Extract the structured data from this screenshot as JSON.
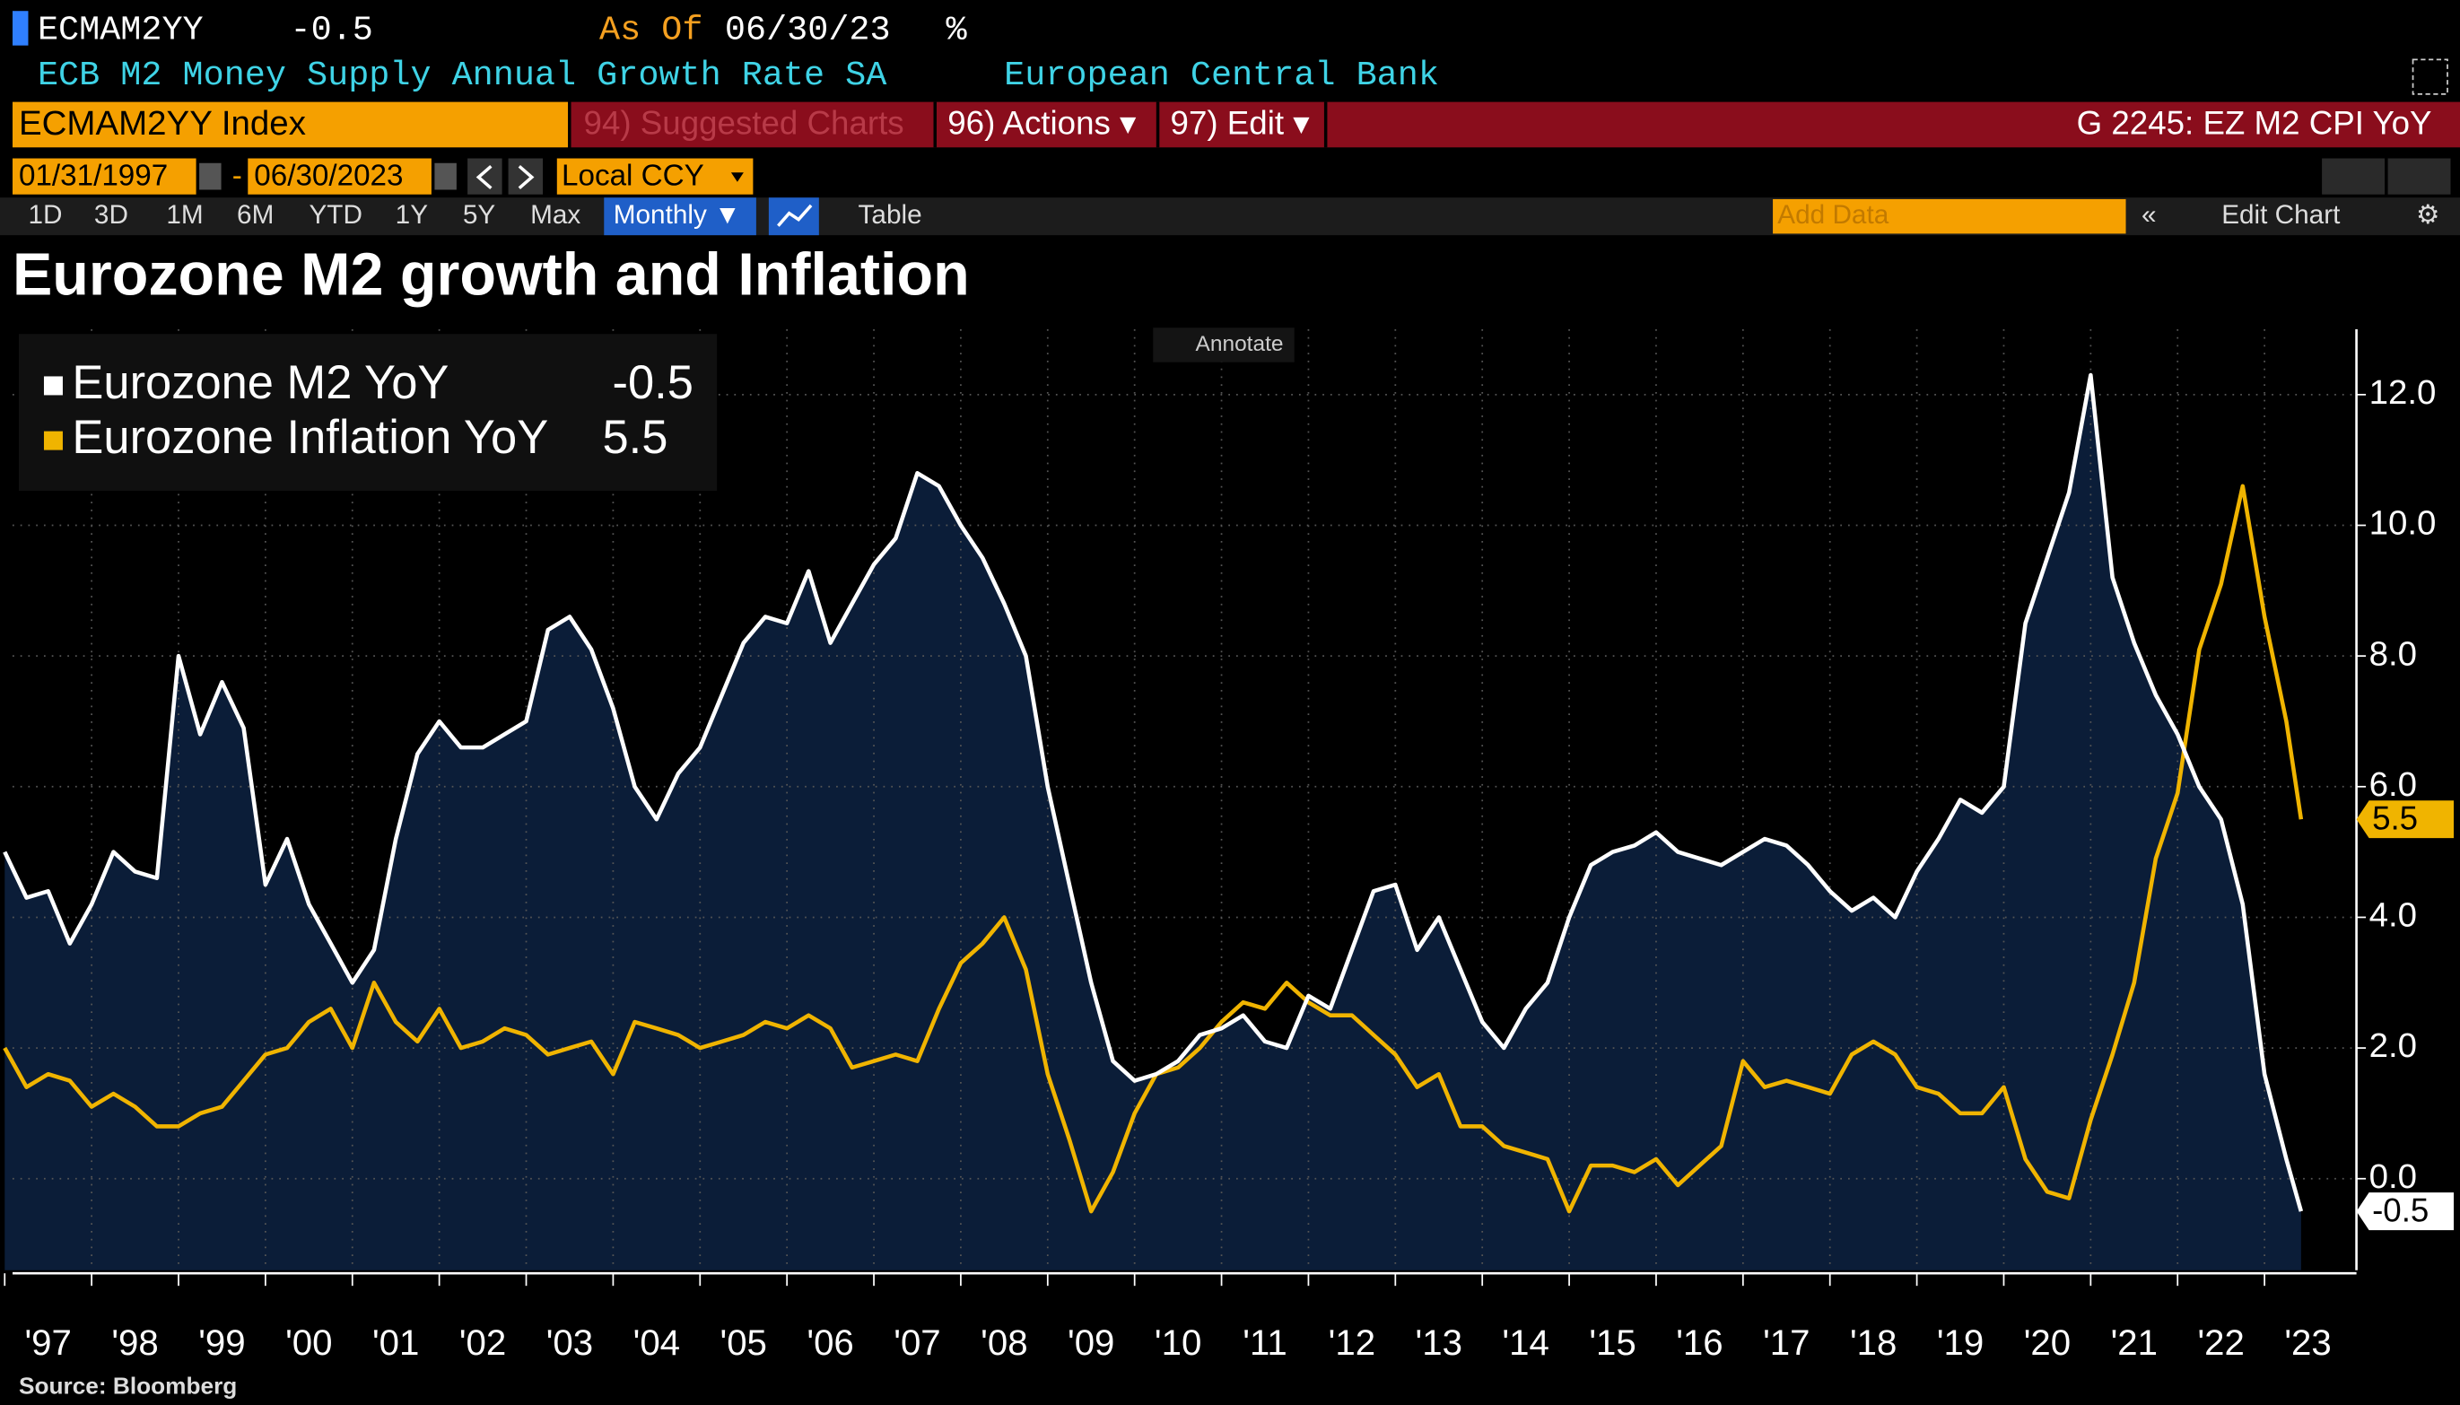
{
  "header": {
    "ticker": "ECMAM2YY",
    "as_of_label": "As Of",
    "as_of": "06/30/23",
    "unit": "%",
    "description": "ECB M2 Money Supply Annual Growth Rate SA",
    "source_name": "European Central Bank"
  },
  "toolbar": {
    "security": "ECMAM2YY Index",
    "suggested": "94) Suggested Charts",
    "actions": "96) Actions ▾",
    "edit": "97) Edit ▾",
    "chart_id": "G 2245: EZ M2 CPI YoY",
    "start_date": "01/31/1997",
    "end_date": "06/30/2023",
    "date_sep": "-",
    "currency": "Local CCY",
    "periods": [
      "1D",
      "3D",
      "1M",
      "6M",
      "YTD",
      "1Y",
      "5Y",
      "Max"
    ],
    "frequency": "Monthly ▼",
    "table": "Table",
    "add_data": "Add Data",
    "edit_chart": "Edit Chart",
    "annotate": "Annotate"
  },
  "chart_data": {
    "type": "line",
    "title": "Eurozone M2 growth and Inflation",
    "source": "Source: Bloomberg",
    "x": [
      1997.0,
      1997.25,
      1997.5,
      1997.75,
      1998.0,
      1998.25,
      1998.5,
      1998.75,
      1999.0,
      1999.25,
      1999.5,
      1999.75,
      2000.0,
      2000.25,
      2000.5,
      2000.75,
      2001.0,
      2001.25,
      2001.5,
      2001.75,
      2002.0,
      2002.25,
      2002.5,
      2002.75,
      2003.0,
      2003.25,
      2003.5,
      2003.75,
      2004.0,
      2004.25,
      2004.5,
      2004.75,
      2005.0,
      2005.25,
      2005.5,
      2005.75,
      2006.0,
      2006.25,
      2006.5,
      2006.75,
      2007.0,
      2007.25,
      2007.5,
      2007.75,
      2008.0,
      2008.25,
      2008.5,
      2008.75,
      2009.0,
      2009.25,
      2009.5,
      2009.75,
      2010.0,
      2010.25,
      2010.5,
      2010.75,
      2011.0,
      2011.25,
      2011.5,
      2011.75,
      2012.0,
      2012.25,
      2012.5,
      2012.75,
      2013.0,
      2013.25,
      2013.5,
      2013.75,
      2014.0,
      2014.25,
      2014.5,
      2014.75,
      2015.0,
      2015.25,
      2015.5,
      2015.75,
      2016.0,
      2016.25,
      2016.5,
      2016.75,
      2017.0,
      2017.25,
      2017.5,
      2017.75,
      2018.0,
      2018.25,
      2018.5,
      2018.75,
      2019.0,
      2019.25,
      2019.5,
      2019.75,
      2020.0,
      2020.25,
      2020.5,
      2020.75,
      2021.0,
      2021.25,
      2021.5,
      2021.75,
      2022.0,
      2022.25,
      2022.5,
      2022.75,
      2023.0,
      2023.25,
      2023.42
    ],
    "series": [
      {
        "name": "Eurozone M2 YoY",
        "color": "#ffffff",
        "fill": "#0b1d38",
        "values": [
          5.0,
          4.3,
          4.4,
          3.6,
          4.2,
          5.0,
          4.7,
          4.6,
          8.0,
          6.8,
          7.6,
          6.9,
          4.5,
          5.2,
          4.2,
          3.6,
          3.0,
          3.5,
          5.2,
          6.5,
          7.0,
          6.6,
          6.6,
          6.8,
          7.0,
          8.4,
          8.6,
          8.1,
          7.2,
          6.0,
          5.5,
          6.2,
          6.6,
          7.4,
          8.2,
          8.6,
          8.5,
          9.3,
          8.2,
          8.8,
          9.4,
          9.8,
          10.8,
          10.6,
          10.0,
          9.5,
          8.8,
          8.0,
          6.0,
          4.5,
          3.0,
          1.8,
          1.5,
          1.6,
          1.8,
          2.2,
          2.3,
          2.5,
          2.1,
          2.0,
          2.8,
          2.6,
          3.5,
          4.4,
          4.5,
          3.5,
          4.0,
          3.2,
          2.4,
          2.0,
          2.6,
          3.0,
          4.0,
          4.8,
          5.0,
          5.1,
          5.3,
          5.0,
          4.9,
          4.8,
          5.0,
          5.2,
          5.1,
          4.8,
          4.4,
          4.1,
          4.3,
          4.0,
          4.7,
          5.2,
          5.8,
          5.6,
          6.0,
          8.5,
          9.5,
          10.5,
          12.3,
          9.2,
          8.2,
          7.4,
          6.8,
          6.0,
          5.5,
          4.2,
          1.6,
          0.3,
          -0.5
        ]
      },
      {
        "name": "Eurozone Inflation YoY",
        "color": "#f0b400",
        "values": [
          2.0,
          1.4,
          1.6,
          1.5,
          1.1,
          1.3,
          1.1,
          0.8,
          0.8,
          1.0,
          1.1,
          1.5,
          1.9,
          2.0,
          2.4,
          2.6,
          2.0,
          3.0,
          2.4,
          2.1,
          2.6,
          2.0,
          2.1,
          2.3,
          2.2,
          1.9,
          2.0,
          2.1,
          1.6,
          2.4,
          2.3,
          2.2,
          2.0,
          2.1,
          2.2,
          2.4,
          2.3,
          2.5,
          2.3,
          1.7,
          1.8,
          1.9,
          1.8,
          2.6,
          3.3,
          3.6,
          4.0,
          3.2,
          1.6,
          0.6,
          -0.5,
          0.1,
          1.0,
          1.6,
          1.7,
          2.0,
          2.4,
          2.7,
          2.6,
          3.0,
          2.7,
          2.5,
          2.5,
          2.2,
          1.9,
          1.4,
          1.6,
          0.8,
          0.8,
          0.5,
          0.4,
          0.3,
          -0.5,
          0.2,
          0.2,
          0.1,
          0.3,
          -0.1,
          0.2,
          0.5,
          1.8,
          1.4,
          1.5,
          1.4,
          1.3,
          1.9,
          2.1,
          1.9,
          1.4,
          1.3,
          1.0,
          1.0,
          1.4,
          0.3,
          -0.2,
          -0.3,
          0.9,
          1.9,
          3.0,
          4.9,
          5.9,
          8.1,
          9.1,
          10.6,
          8.6,
          7.0,
          5.5
        ]
      }
    ],
    "xlim": [
      1996.9,
      2024.0
    ],
    "xticks": [
      {
        "value": 1997,
        "label": "'97"
      },
      {
        "value": 1998,
        "label": "'98"
      },
      {
        "value": 1999,
        "label": "'99"
      },
      {
        "value": 2000,
        "label": "'00"
      },
      {
        "value": 2001,
        "label": "'01"
      },
      {
        "value": 2002,
        "label": "'02"
      },
      {
        "value": 2003,
        "label": "'03"
      },
      {
        "value": 2004,
        "label": "'04"
      },
      {
        "value": 2005,
        "label": "'05"
      },
      {
        "value": 2006,
        "label": "'06"
      },
      {
        "value": 2007,
        "label": "'07"
      },
      {
        "value": 2008,
        "label": "'08"
      },
      {
        "value": 2009,
        "label": "'09"
      },
      {
        "value": 2010,
        "label": "'10"
      },
      {
        "value": 2011,
        "label": "'11"
      },
      {
        "value": 2012,
        "label": "'12"
      },
      {
        "value": 2013,
        "label": "'13"
      },
      {
        "value": 2014,
        "label": "'14"
      },
      {
        "value": 2015,
        "label": "'15"
      },
      {
        "value": 2016,
        "label": "'16"
      },
      {
        "value": 2017,
        "label": "'17"
      },
      {
        "value": 2018,
        "label": "'18"
      },
      {
        "value": 2019,
        "label": "'19"
      },
      {
        "value": 2020,
        "label": "'20"
      },
      {
        "value": 2021,
        "label": "'21"
      },
      {
        "value": 2022,
        "label": "'22"
      },
      {
        "value": 2023,
        "label": "'23"
      }
    ],
    "ylim": [
      -1.4,
      13.0
    ],
    "yticks": [
      {
        "value": 0,
        "label": "0.0"
      },
      {
        "value": 2,
        "label": "2.0"
      },
      {
        "value": 4,
        "label": "4.0"
      },
      {
        "value": 6,
        "label": "6.0"
      },
      {
        "value": 8,
        "label": "8.0"
      },
      {
        "value": 10,
        "label": "10.0"
      },
      {
        "value": 12,
        "label": "12.0"
      }
    ],
    "grid": true,
    "legend": "upper left"
  }
}
